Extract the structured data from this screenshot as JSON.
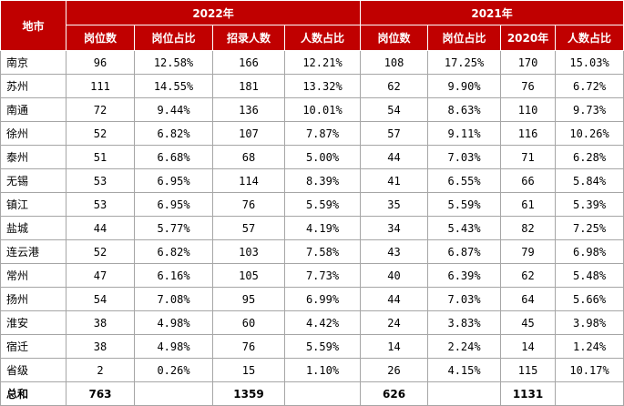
{
  "headers": {
    "city": "地市",
    "group2022": "2022年",
    "group2021": "2021年",
    "sub2022": [
      "岗位数",
      "岗位占比",
      "招录人数",
      "人数占比"
    ],
    "sub2021": [
      "岗位数",
      "岗位占比",
      "2020年",
      "人数占比"
    ]
  },
  "rows": [
    {
      "city": "南京",
      "c": [
        "96",
        "12.58%",
        "166",
        "12.21%",
        "108",
        "17.25%",
        "170",
        "15.03%"
      ]
    },
    {
      "city": "苏州",
      "c": [
        "111",
        "14.55%",
        "181",
        "13.32%",
        "62",
        "9.90%",
        "76",
        "6.72%"
      ]
    },
    {
      "city": "南通",
      "c": [
        "72",
        "9.44%",
        "136",
        "10.01%",
        "54",
        "8.63%",
        "110",
        "9.73%"
      ]
    },
    {
      "city": "徐州",
      "c": [
        "52",
        "6.82%",
        "107",
        "7.87%",
        "57",
        "9.11%",
        "116",
        "10.26%"
      ]
    },
    {
      "city": "泰州",
      "c": [
        "51",
        "6.68%",
        "68",
        "5.00%",
        "44",
        "7.03%",
        "71",
        "6.28%"
      ]
    },
    {
      "city": "无锡",
      "c": [
        "53",
        "6.95%",
        "114",
        "8.39%",
        "41",
        "6.55%",
        "66",
        "5.84%"
      ]
    },
    {
      "city": "镇江",
      "c": [
        "53",
        "6.95%",
        "76",
        "5.59%",
        "35",
        "5.59%",
        "61",
        "5.39%"
      ]
    },
    {
      "city": "盐城",
      "c": [
        "44",
        "5.77%",
        "57",
        "4.19%",
        "34",
        "5.43%",
        "82",
        "7.25%"
      ]
    },
    {
      "city": "连云港",
      "c": [
        "52",
        "6.82%",
        "103",
        "7.58%",
        "43",
        "6.87%",
        "79",
        "6.98%"
      ]
    },
    {
      "city": "常州",
      "c": [
        "47",
        "6.16%",
        "105",
        "7.73%",
        "40",
        "6.39%",
        "62",
        "5.48%"
      ]
    },
    {
      "city": "扬州",
      "c": [
        "54",
        "7.08%",
        "95",
        "6.99%",
        "44",
        "7.03%",
        "64",
        "5.66%"
      ]
    },
    {
      "city": "淮安",
      "c": [
        "38",
        "4.98%",
        "60",
        "4.42%",
        "24",
        "3.83%",
        "45",
        "3.98%"
      ]
    },
    {
      "city": "宿迁",
      "c": [
        "38",
        "4.98%",
        "76",
        "5.59%",
        "14",
        "2.24%",
        "14",
        "1.24%"
      ]
    },
    {
      "city": "省级",
      "c": [
        "2",
        "0.26%",
        "15",
        "1.10%",
        "26",
        "4.15%",
        "115",
        "10.17%"
      ]
    }
  ],
  "total": {
    "label": "总和",
    "c": [
      "763",
      "",
      "1359",
      "",
      "626",
      "",
      "1131",
      ""
    ]
  }
}
